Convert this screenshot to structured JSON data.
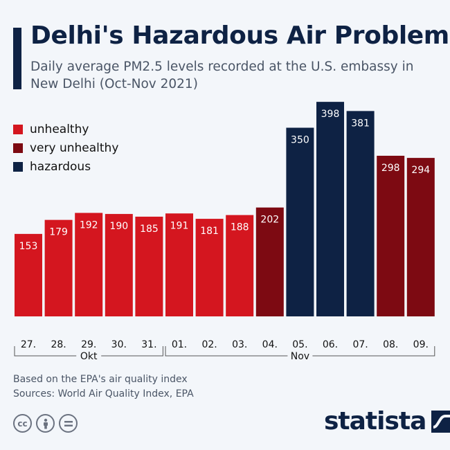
{
  "title": "Delhi's Hazardous Air Problem",
  "subtitle": "Daily average PM2.5 levels recorded at the U.S. embassy in New Delhi (Oct-Nov 2021)",
  "legend": [
    {
      "label": "unhealthy",
      "color": "#d4161f"
    },
    {
      "label": "very unhealthy",
      "color": "#7d0a12"
    },
    {
      "label": "hazardous",
      "color": "#0e2244"
    }
  ],
  "notes": {
    "line1": "Based on the EPA's air quality index",
    "line2": "Sources: World Air Quality Index, EPA"
  },
  "license_icons": [
    "cc-icon",
    "person-icon",
    "equals-icon"
  ],
  "brand": "statista",
  "chart_data": {
    "type": "bar",
    "categories": [
      "27.",
      "28.",
      "29.",
      "30.",
      "31.",
      "01.",
      "02.",
      "03.",
      "04.",
      "05.",
      "06.",
      "07.",
      "08.",
      "09."
    ],
    "values": [
      153,
      179,
      192,
      190,
      185,
      191,
      181,
      188,
      202,
      350,
      398,
      381,
      298,
      294
    ],
    "levels": [
      "unhealthy",
      "unhealthy",
      "unhealthy",
      "unhealthy",
      "unhealthy",
      "unhealthy",
      "unhealthy",
      "unhealthy",
      "very unhealthy",
      "hazardous",
      "hazardous",
      "hazardous",
      "very unhealthy",
      "very unhealthy"
    ],
    "colors": {
      "unhealthy": "#d4161f",
      "very unhealthy": "#7d0a12",
      "hazardous": "#0e2244"
    },
    "month_groups": [
      {
        "label": "Okt",
        "start": 0,
        "end": 4
      },
      {
        "label": "Nov",
        "start": 5,
        "end": 13
      }
    ],
    "ylim": [
      0,
      420
    ],
    "title": "Delhi's Hazardous Air Problem",
    "xlabel": "",
    "ylabel": ""
  }
}
